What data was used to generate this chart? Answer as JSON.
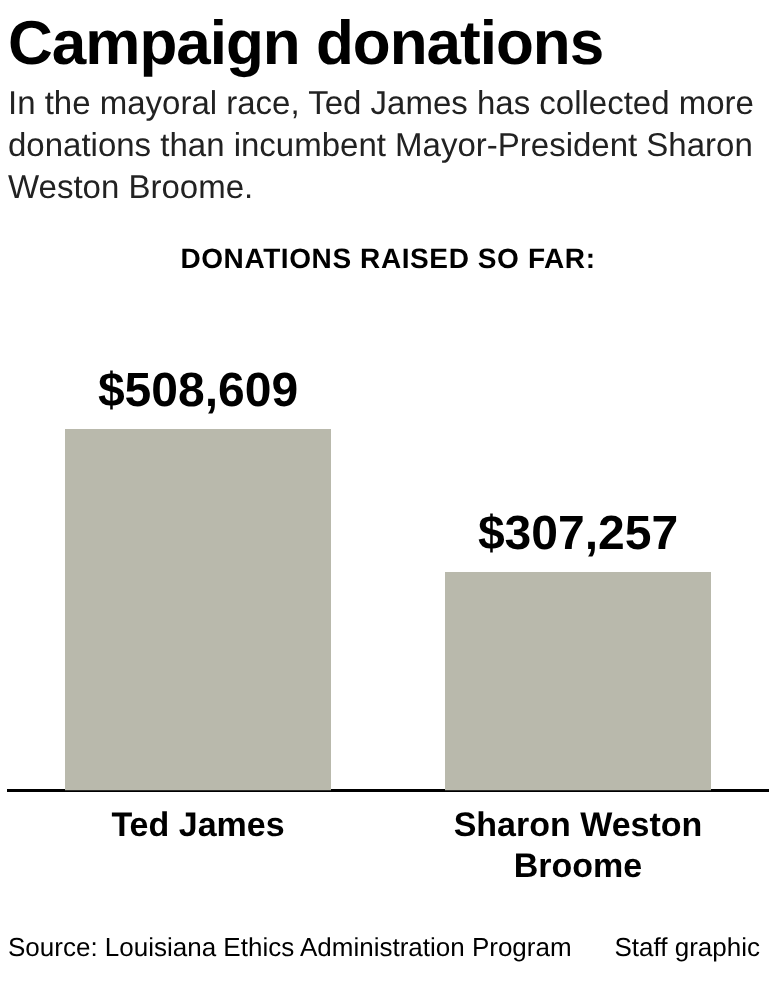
{
  "chart_data": {
    "type": "bar",
    "title": "Campaign donations",
    "subtitle": "In the mayoral race, Ted James has collected more donations than incumbent Mayor-President Sharon Weston Broome.",
    "categories": [
      "Ted James",
      "Sharon Weston Broome"
    ],
    "values": [
      508609,
      307257
    ],
    "value_labels": [
      "$508,609",
      "$307,257"
    ],
    "color": "#b9b9ac",
    "annotations": [
      "DONATIONS RAISED SO FAR:",
      "Source: Louisiana Ethics Administration Program",
      "Staff graphic"
    ],
    "grid": false,
    "legend": false
  }
}
